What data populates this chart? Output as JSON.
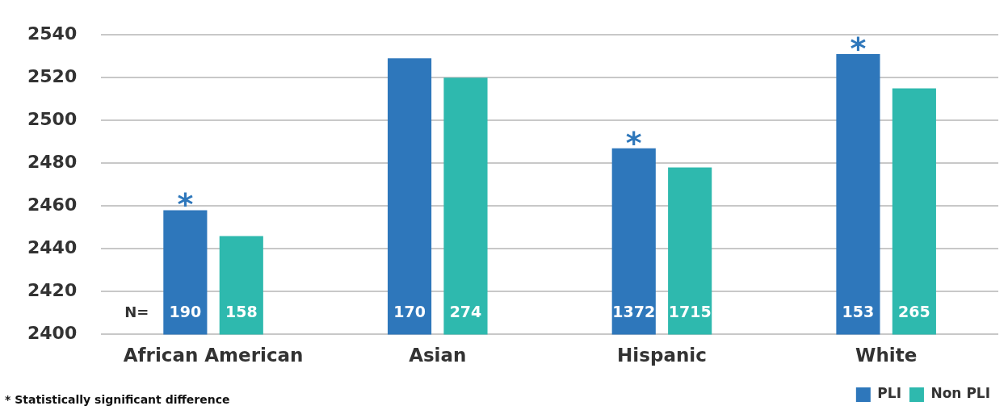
{
  "chart_data": {
    "type": "bar",
    "categories": [
      "African American",
      "Asian",
      "Hispanic",
      "White"
    ],
    "series": [
      {
        "name": "PLI",
        "color": "#2e77bb",
        "values": [
          2458,
          2529,
          2487,
          2531
        ],
        "value_labels": [
          "*",
          null,
          "*",
          "*"
        ]
      },
      {
        "name": "Non PLI",
        "color": "#2eb9ae",
        "values": [
          2446,
          2520,
          2478,
          2515
        ]
      }
    ],
    "ylim": [
      2400,
      2540
    ],
    "yticks": [
      2400,
      2420,
      2440,
      2460,
      2480,
      2500,
      2520,
      2540
    ],
    "grid": "y",
    "legend": "bottom right",
    "annotations": [
      "N=",
      "190",
      "158",
      "170",
      "274",
      "1372",
      "1715",
      "153",
      "265",
      "* Statistically significant difference"
    ]
  }
}
